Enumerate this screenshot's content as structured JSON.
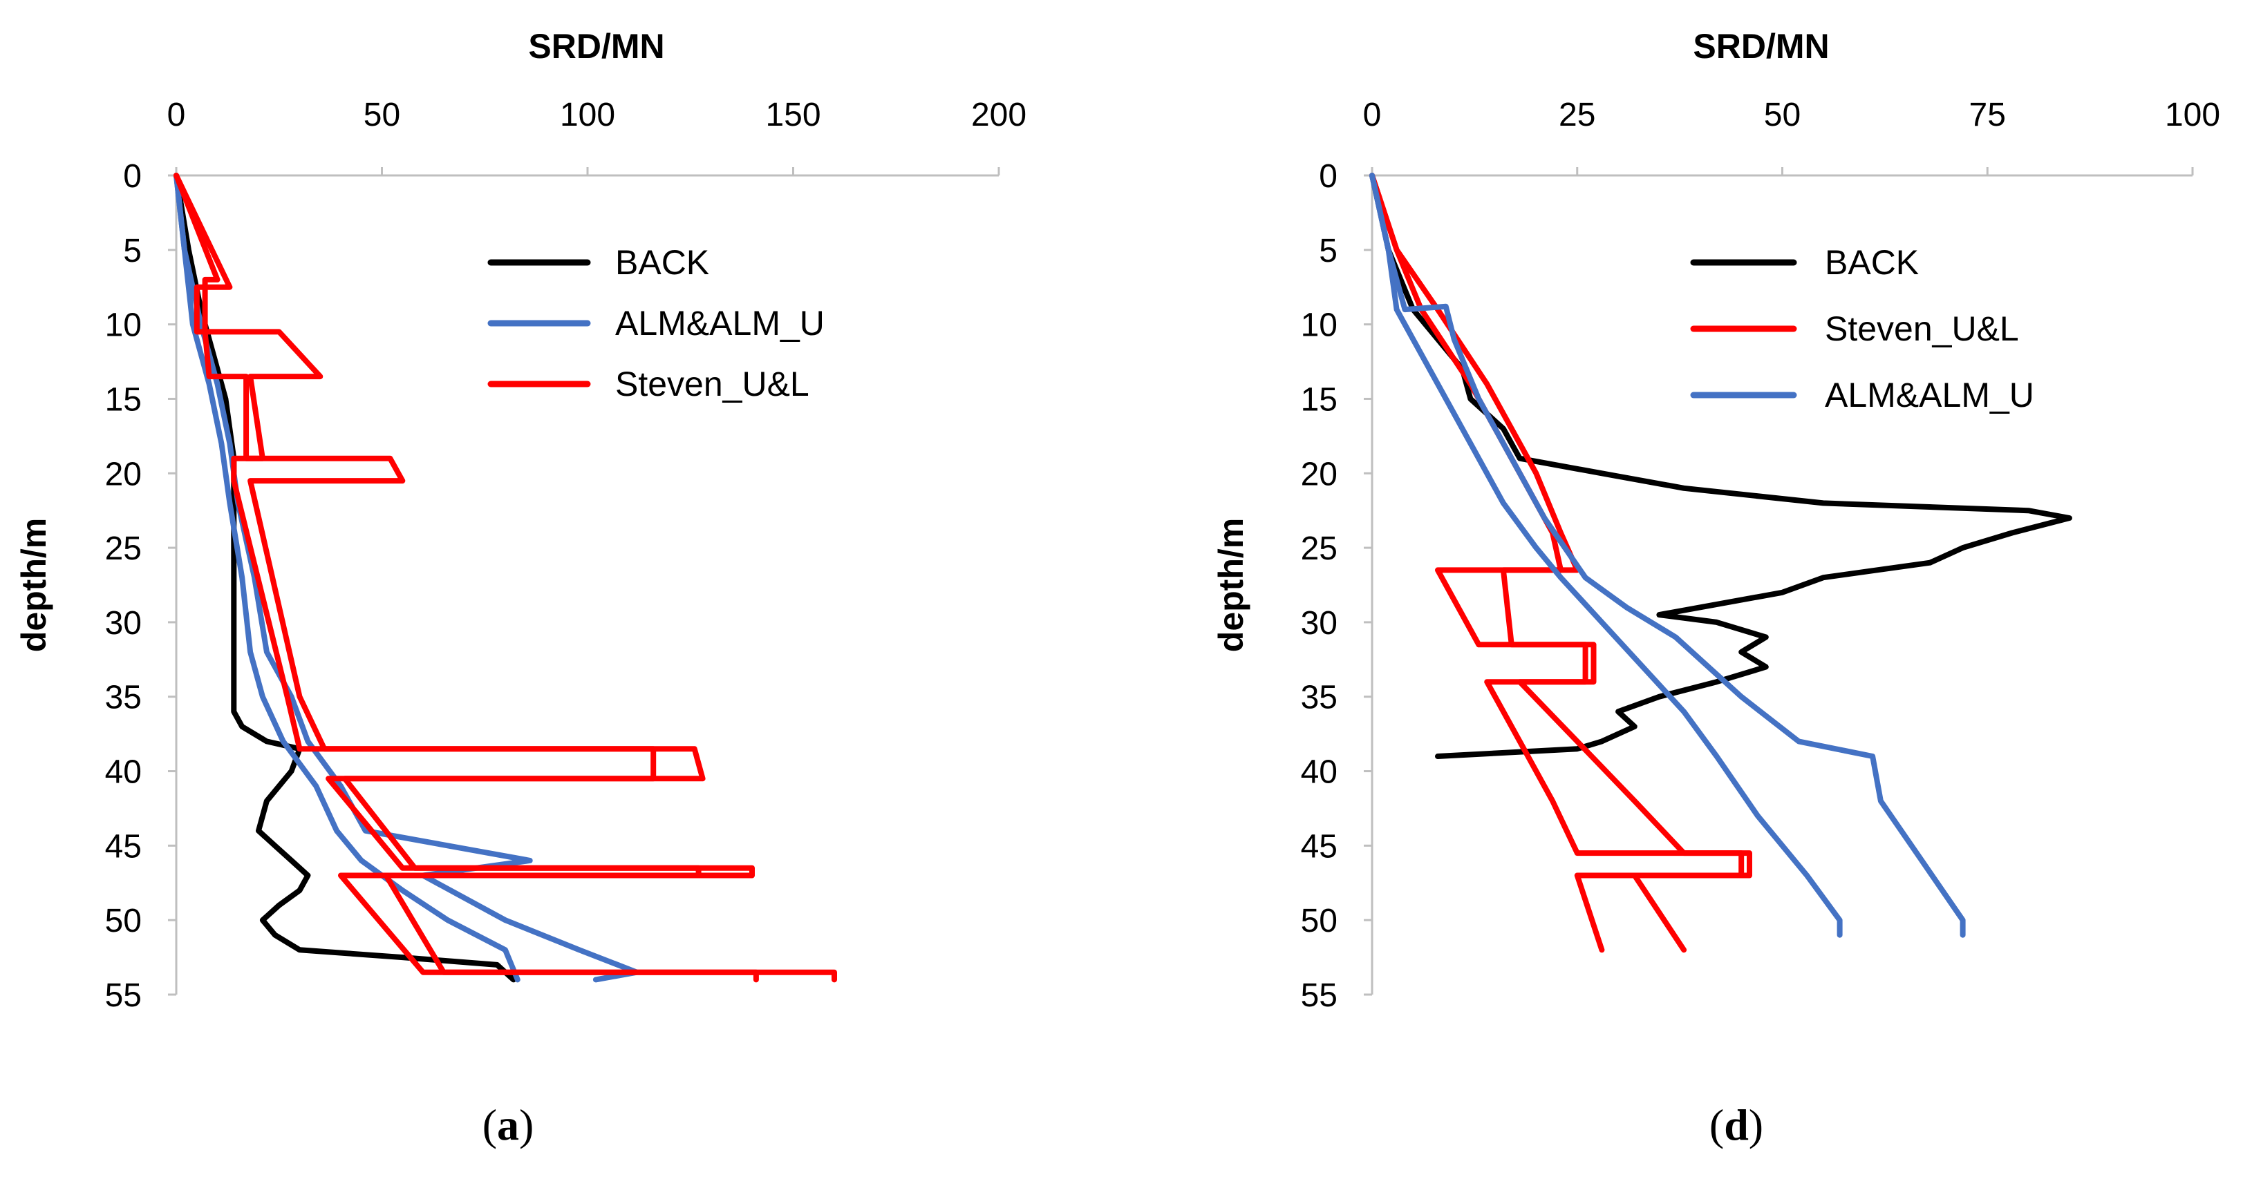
{
  "chart_data": [
    {
      "type": "line",
      "panel_label": "a",
      "title": "SRD/MN",
      "xlabel": "SRD/MN",
      "ylabel": "depth/m",
      "xlim": [
        0,
        200
      ],
      "ylim": [
        0,
        55
      ],
      "x_ticks": [
        0,
        50,
        100,
        150,
        200
      ],
      "y_ticks": [
        0,
        5,
        10,
        15,
        20,
        25,
        30,
        35,
        40,
        45,
        50,
        55
      ],
      "x_axis_position": "top",
      "y_axis_inverted": true,
      "legend_position": "top-right",
      "legend": [
        "BACK",
        "ALM&ALM_U",
        "Steven_U&L"
      ],
      "series": [
        {
          "name": "BACK",
          "color": "#000000",
          "points": [
            [
              0,
              0
            ],
            [
              3,
              5
            ],
            [
              6,
              9
            ],
            [
              9,
              12
            ],
            [
              12,
              15
            ],
            [
              14,
              19
            ],
            [
              14,
              25
            ],
            [
              14,
              30
            ],
            [
              14,
              36
            ],
            [
              16,
              37
            ],
            [
              22,
              38
            ],
            [
              30,
              38.5
            ],
            [
              28,
              40
            ],
            [
              22,
              42
            ],
            [
              20,
              44
            ],
            [
              24,
              45
            ],
            [
              28,
              46
            ],
            [
              32,
              47
            ],
            [
              30,
              48
            ],
            [
              25,
              49
            ],
            [
              21,
              50
            ],
            [
              24,
              51
            ],
            [
              30,
              52
            ],
            [
              55,
              52.5
            ],
            [
              78,
              53
            ],
            [
              82,
              54
            ]
          ]
        },
        {
          "name": "ALM&ALM_U (lower)",
          "color": "#4472C4",
          "points": [
            [
              0,
              0
            ],
            [
              2,
              5
            ],
            [
              4,
              10
            ],
            [
              8,
              14
            ],
            [
              11,
              18
            ],
            [
              13,
              22
            ],
            [
              16,
              27
            ],
            [
              18,
              32
            ],
            [
              21,
              35
            ],
            [
              26,
              38
            ],
            [
              34,
              41
            ],
            [
              39,
              44
            ],
            [
              45,
              46
            ],
            [
              55,
              48
            ],
            [
              66,
              50
            ],
            [
              80,
              52
            ],
            [
              83,
              54
            ]
          ]
        },
        {
          "name": "ALM&ALM_U (upper)",
          "color": "#4472C4",
          "points": [
            [
              0,
              0
            ],
            [
              2,
              5
            ],
            [
              6,
              10
            ],
            [
              10,
              14
            ],
            [
              13,
              18
            ],
            [
              15,
              22
            ],
            [
              19,
              27
            ],
            [
              22,
              32
            ],
            [
              28,
              35
            ],
            [
              32,
              38
            ],
            [
              40,
              41
            ],
            [
              46,
              44
            ],
            [
              86,
              46
            ],
            [
              60,
              47
            ],
            [
              80,
              50
            ],
            [
              98,
              52
            ],
            [
              112,
              53.5
            ],
            [
              102,
              54
            ]
          ]
        },
        {
          "name": "Steven_U&L (lower)",
          "color": "#FF0000",
          "points": [
            [
              0,
              0
            ],
            [
              13,
              7.5
            ],
            [
              5,
              7.5
            ],
            [
              5,
              10.5
            ],
            [
              25,
              10.5
            ],
            [
              35,
              13.5
            ],
            [
              18,
              13.5
            ],
            [
              21,
              19
            ],
            [
              14,
              19
            ],
            [
              14,
              20.5
            ],
            [
              27,
              35
            ],
            [
              30,
              38.5
            ],
            [
              116,
              38.5
            ],
            [
              116,
              40.5
            ],
            [
              37,
              40.5
            ],
            [
              55,
              46.5
            ],
            [
              127,
              46.5
            ],
            [
              127,
              47
            ],
            [
              40,
              47
            ],
            [
              60,
              53.5
            ],
            [
              141,
              53.5
            ],
            [
              141,
              54
            ]
          ]
        },
        {
          "name": "Steven_U&L (upper)",
          "color": "#FF0000",
          "points": [
            [
              0,
              0
            ],
            [
              10,
              7
            ],
            [
              7,
              7
            ],
            [
              7,
              10.5
            ],
            [
              8,
              13.5
            ],
            [
              17,
              13.5
            ],
            [
              17,
              19
            ],
            [
              52,
              19
            ],
            [
              55,
              20.5
            ],
            [
              18,
              20.5
            ],
            [
              30,
              35
            ],
            [
              36,
              38.5
            ],
            [
              126,
              38.5
            ],
            [
              128,
              40.5
            ],
            [
              41,
              40.5
            ],
            [
              58,
              46.5
            ],
            [
              140,
              46.5
            ],
            [
              140,
              47
            ],
            [
              51,
              47
            ],
            [
              65,
              53.5
            ],
            [
              160,
              53.5
            ],
            [
              160,
              54
            ]
          ]
        }
      ]
    },
    {
      "type": "line",
      "panel_label": "d",
      "title": "SRD/MN",
      "xlabel": "SRD/MN",
      "ylabel": "depth/m",
      "xlim": [
        0,
        100
      ],
      "ylim": [
        0,
        55
      ],
      "x_ticks": [
        0,
        25,
        50,
        75,
        100
      ],
      "y_ticks": [
        0,
        5,
        10,
        15,
        20,
        25,
        30,
        35,
        40,
        45,
        50,
        55
      ],
      "x_axis_position": "top",
      "y_axis_inverted": true,
      "legend_position": "top-right",
      "legend": [
        "BACK",
        "Steven_U&L",
        "ALM&ALM_U"
      ],
      "series": [
        {
          "name": "BACK",
          "color": "#000000",
          "points": [
            [
              0,
              0
            ],
            [
              2,
              5
            ],
            [
              5,
              9
            ],
            [
              8,
              11
            ],
            [
              11,
              13
            ],
            [
              12,
              15
            ],
            [
              16,
              17
            ],
            [
              18,
              19
            ],
            [
              28,
              20
            ],
            [
              38,
              21
            ],
            [
              55,
              22
            ],
            [
              80,
              22.5
            ],
            [
              85,
              23
            ],
            [
              78,
              24
            ],
            [
              72,
              25
            ],
            [
              68,
              26
            ],
            [
              55,
              27
            ],
            [
              50,
              28
            ],
            [
              40,
              29
            ],
            [
              35,
              29.5
            ],
            [
              42,
              30
            ],
            [
              48,
              31
            ],
            [
              45,
              32
            ],
            [
              48,
              33
            ],
            [
              42,
              34
            ],
            [
              35,
              35
            ],
            [
              30,
              36
            ],
            [
              32,
              37
            ],
            [
              28,
              38
            ],
            [
              25,
              38.5
            ],
            [
              8,
              39
            ]
          ]
        },
        {
          "name": "Steven_U&L (lower)",
          "color": "#FF0000",
          "points": [
            [
              0,
              0
            ],
            [
              3,
              5
            ],
            [
              6,
              9
            ],
            [
              12,
              14
            ],
            [
              18,
              20
            ],
            [
              22,
              24
            ],
            [
              23,
              26.5
            ],
            [
              8,
              26.5
            ],
            [
              13,
              31.5
            ],
            [
              26,
              31.5
            ],
            [
              26,
              34
            ],
            [
              14,
              34
            ],
            [
              18,
              38
            ],
            [
              22,
              42
            ],
            [
              25,
              45.5
            ],
            [
              45,
              45.5
            ],
            [
              45,
              47
            ],
            [
              25,
              47
            ],
            [
              28,
              52
            ]
          ]
        },
        {
          "name": "Steven_U&L (upper)",
          "color": "#FF0000",
          "points": [
            [
              0,
              0
            ],
            [
              3,
              5
            ],
            [
              8,
              9
            ],
            [
              14,
              14
            ],
            [
              20,
              20
            ],
            [
              23,
              24
            ],
            [
              25,
              26.5
            ],
            [
              16,
              26.5
            ],
            [
              17,
              31.5
            ],
            [
              27,
              31.5
            ],
            [
              27,
              34
            ],
            [
              18,
              34
            ],
            [
              25,
              38
            ],
            [
              32,
              42
            ],
            [
              38,
              45.5
            ],
            [
              46,
              45.5
            ],
            [
              46,
              47
            ],
            [
              32,
              47
            ],
            [
              38,
              52
            ]
          ]
        },
        {
          "name": "ALM&ALM_U (lower)",
          "color": "#4472C4",
          "points": [
            [
              0,
              0
            ],
            [
              2,
              5
            ],
            [
              3,
              9
            ],
            [
              5,
              11
            ],
            [
              8,
              14
            ],
            [
              12,
              18
            ],
            [
              16,
              22
            ],
            [
              20,
              25
            ],
            [
              23,
              27
            ],
            [
              28,
              30
            ],
            [
              33,
              33
            ],
            [
              38,
              36
            ],
            [
              42,
              39
            ],
            [
              47,
              43
            ],
            [
              53,
              47
            ],
            [
              57,
              50
            ],
            [
              57,
              51
            ]
          ]
        },
        {
          "name": "ALM&ALM_U (upper)",
          "color": "#4472C4",
          "points": [
            [
              0,
              0
            ],
            [
              2,
              5
            ],
            [
              4,
              9
            ],
            [
              9,
              8.8
            ],
            [
              10,
              11
            ],
            [
              13,
              15
            ],
            [
              17,
              19
            ],
            [
              21,
              23
            ],
            [
              26,
              27
            ],
            [
              31,
              29
            ],
            [
              37,
              31
            ],
            [
              45,
              35
            ],
            [
              52,
              38
            ],
            [
              61,
              39
            ],
            [
              62,
              42
            ],
            [
              67,
              46
            ],
            [
              72,
              50
            ],
            [
              72,
              51
            ]
          ]
        }
      ]
    }
  ]
}
